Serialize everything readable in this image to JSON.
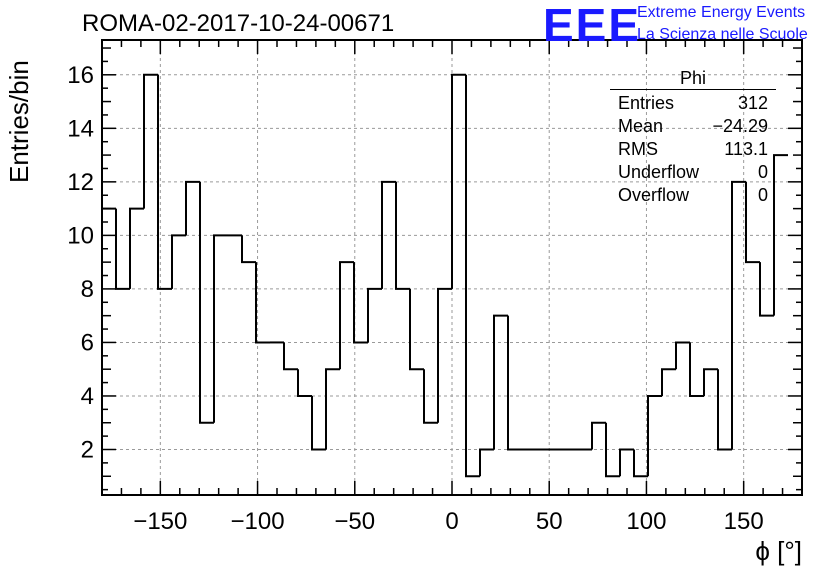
{
  "header": {
    "title": "ROMA-02-2017-10-24-00671",
    "logo_text": "EEE",
    "logo_line1": "Extreme Energy Events",
    "logo_line2": "La Scienza nelle Scuole",
    "logo_color": "#1a1aff"
  },
  "stats": {
    "title": "Phi",
    "rows": [
      {
        "label": "Entries",
        "value": "312"
      },
      {
        "label": "Mean",
        "value": "−24.29"
      },
      {
        "label": "RMS",
        "value": "113.1"
      },
      {
        "label": "Underflow",
        "value": "0"
      },
      {
        "label": "Overflow",
        "value": "0"
      }
    ]
  },
  "chart_data": {
    "type": "bar",
    "style": "step-histogram",
    "xlabel": "ϕ [°]",
    "ylabel": "Entries/bin",
    "xlim": [
      -180,
      180
    ],
    "ylim": [
      0.3,
      17.3
    ],
    "bin_width": 7.2,
    "bin_edges_start": -180,
    "values": [
      11,
      8,
      11,
      16,
      8,
      10,
      12,
      3,
      10,
      10,
      9,
      6,
      6,
      5,
      4,
      2,
      5,
      9,
      6,
      8,
      12,
      8,
      5,
      3,
      8,
      16,
      1,
      2,
      7,
      2,
      2,
      2,
      2,
      2,
      2,
      3,
      1,
      2,
      1,
      4,
      5,
      6,
      4,
      5,
      2,
      12,
      9,
      7,
      13
    ],
    "xticks": [
      -150,
      -100,
      -50,
      0,
      50,
      100,
      150
    ],
    "xtick_labels": [
      "−150",
      "−100",
      "−50",
      "0",
      "50",
      "100",
      "150"
    ],
    "yticks": [
      2,
      4,
      6,
      8,
      10,
      12,
      14,
      16
    ],
    "grid": true,
    "line_color": "#000000"
  }
}
